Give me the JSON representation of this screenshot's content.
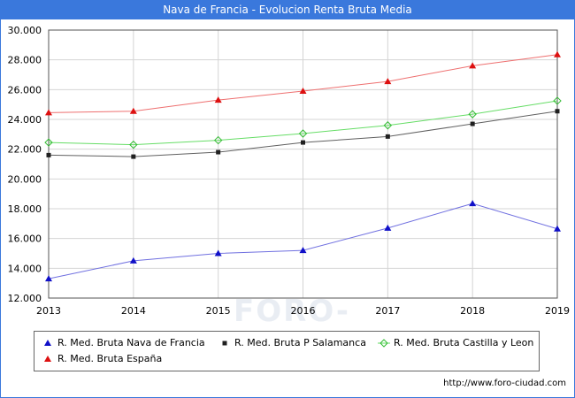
{
  "header": {
    "title": "Nava de Francia - Evolucion Renta Bruta Media"
  },
  "watermark": "FORO-CIUDAD.COM",
  "source": "http://www.foro-ciudad.com",
  "chart_data": {
    "type": "line",
    "title": "Nava de Francia - Evolucion Renta Bruta Media",
    "x": [
      2013,
      2014,
      2015,
      2016,
      2017,
      2018,
      2019
    ],
    "x_tick_labels": [
      "2013",
      "2014",
      "2015",
      "2016",
      "2017",
      "2018",
      "2019"
    ],
    "ylim": [
      12000,
      30000
    ],
    "y_ticks": [
      12000,
      14000,
      16000,
      18000,
      20000,
      22000,
      24000,
      26000,
      28000,
      30000
    ],
    "y_tick_labels": [
      "12.000",
      "14.000",
      "16.000",
      "18.000",
      "20.000",
      "22.000",
      "24.000",
      "26.000",
      "28.000",
      "30.000"
    ],
    "grid": true,
    "legend_position": "bottom",
    "series": [
      {
        "name": "R. Med. Bruta Nava de Francia",
        "color": "#7070e0",
        "marker": "triangle",
        "marker_color": "#1010c8",
        "values": [
          13300,
          14500,
          15000,
          15200,
          16700,
          18350,
          16650
        ]
      },
      {
        "name": "R. Med. Bruta P Salamanca",
        "color": "#606060",
        "marker": "square",
        "marker_color": "#202020",
        "values": [
          21600,
          21500,
          21800,
          22450,
          22850,
          23700,
          24550
        ]
      },
      {
        "name": "R. Med. Bruta Castilla y Leon",
        "color": "#66dd66",
        "marker": "diamond",
        "marker_color": "#33bb33",
        "values": [
          22450,
          22300,
          22600,
          23050,
          23600,
          24350,
          25250
        ]
      },
      {
        "name": "R. Med. Bruta España",
        "color": "#ee7070",
        "marker": "triangle",
        "marker_color": "#dd1010",
        "values": [
          24450,
          24550,
          25300,
          25900,
          26550,
          27600,
          28350
        ]
      }
    ]
  }
}
